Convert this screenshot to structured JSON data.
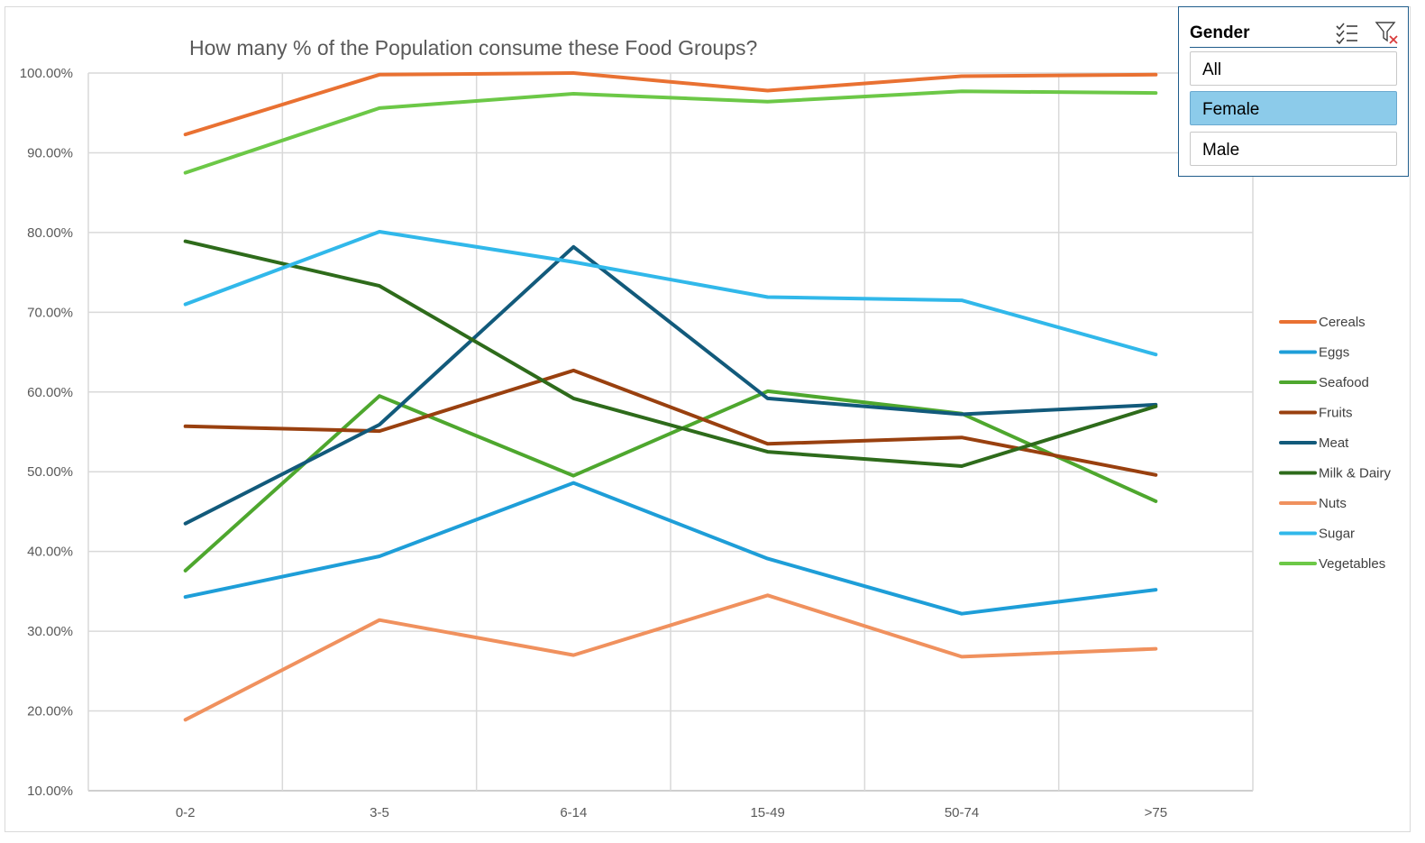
{
  "chart_data": {
    "type": "line",
    "title": "How many % of the Population consume these Food Groups?",
    "categories": [
      "0-2",
      "3-5",
      "6-14",
      "15-49",
      "50-74",
      ">75"
    ],
    "y_ticks": [
      "10.00%",
      "20.00%",
      "30.00%",
      "40.00%",
      "50.00%",
      "60.00%",
      "70.00%",
      "80.00%",
      "90.00%",
      "100.00%"
    ],
    "ylim": [
      10,
      100
    ],
    "grid": true,
    "legend_position": "right",
    "series": [
      {
        "name": "Cereals",
        "color": "#e97132",
        "values": [
          92.3,
          99.8,
          100.0,
          97.8,
          99.6,
          99.8
        ]
      },
      {
        "name": "Eggs",
        "color": "#1e9ed8",
        "values": [
          34.3,
          39.4,
          48.6,
          39.1,
          32.2,
          35.2
        ]
      },
      {
        "name": "Seafood",
        "color": "#4ea72e",
        "values": [
          37.6,
          59.5,
          49.5,
          60.1,
          57.3,
          46.3
        ]
      },
      {
        "name": "Fruits",
        "color": "#99400f",
        "values": [
          55.7,
          55.1,
          62.7,
          53.5,
          54.3,
          49.6
        ]
      },
      {
        "name": "Meat",
        "color": "#125a7b",
        "values": [
          43.5,
          55.9,
          78.2,
          59.2,
          57.2,
          58.4
        ]
      },
      {
        "name": "Milk & Dairy",
        "color": "#2e6b1b",
        "values": [
          78.9,
          73.3,
          59.2,
          52.5,
          50.7,
          58.2
        ]
      },
      {
        "name": "Nuts",
        "color": "#f0915e",
        "values": [
          18.9,
          31.4,
          27.0,
          34.5,
          26.8,
          27.8
        ]
      },
      {
        "name": "Sugar",
        "color": "#31b8ea",
        "values": [
          71.0,
          80.1,
          76.3,
          71.9,
          71.5,
          64.7
        ]
      },
      {
        "name": "Vegetables",
        "color": "#6cc847",
        "values": [
          87.5,
          95.6,
          97.4,
          96.4,
          97.7,
          97.5
        ]
      }
    ]
  },
  "slicer": {
    "title": "Gender",
    "multiselect_icon": "multi-select-icon",
    "clear_filter_icon": "clear-filter-icon",
    "items": [
      {
        "label": "All",
        "selected": false
      },
      {
        "label": "Female",
        "selected": true
      },
      {
        "label": "Male",
        "selected": false
      }
    ],
    "selected_color": "#8ccbea",
    "border_color": "#1f5c8b"
  }
}
